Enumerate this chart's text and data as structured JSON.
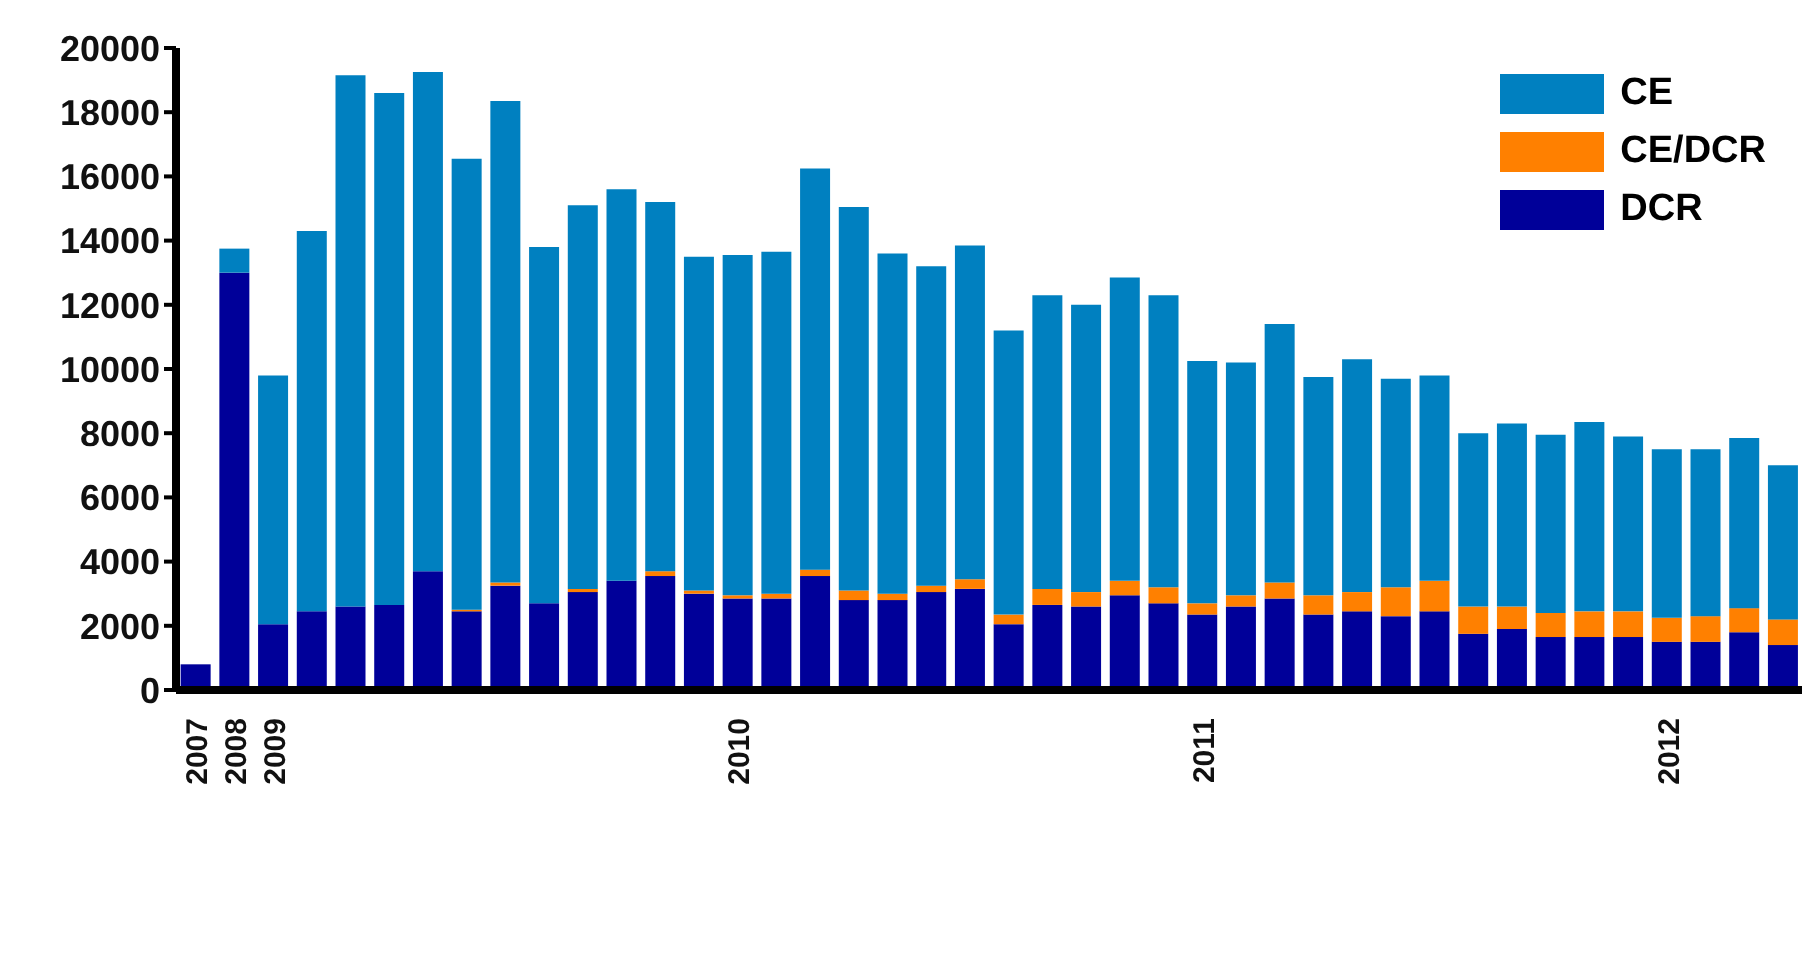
{
  "chart_data": {
    "type": "bar",
    "stacked": true,
    "categories": [
      "2007",
      "2008",
      "2009",
      null,
      null,
      null,
      null,
      null,
      null,
      null,
      null,
      null,
      null,
      null,
      "2010",
      null,
      null,
      null,
      null,
      null,
      null,
      null,
      null,
      null,
      null,
      null,
      "2011",
      null,
      null,
      null,
      null,
      null,
      null,
      null,
      null,
      null,
      null,
      null,
      "2012",
      null,
      null,
      null
    ],
    "series": [
      {
        "name": "DCR",
        "color": "#000099",
        "values": [
          800,
          13000,
          2050,
          2450,
          2600,
          2650,
          3700,
          2450,
          3250,
          2700,
          3050,
          3400,
          3550,
          3000,
          2850,
          2850,
          3550,
          2800,
          2800,
          3050,
          3150,
          2050,
          2650,
          2600,
          2950,
          2700,
          2350,
          2600,
          2850,
          2350,
          2450,
          2300,
          2450,
          1750,
          1900,
          1650,
          1650,
          1650,
          1500,
          1500,
          1800,
          1400
        ]
      },
      {
        "name": "CE/DCR",
        "color": "#ff8000",
        "values": [
          0,
          0,
          0,
          0,
          0,
          0,
          0,
          50,
          100,
          0,
          100,
          0,
          150,
          100,
          100,
          150,
          200,
          300,
          200,
          200,
          300,
          300,
          500,
          450,
          450,
          500,
          350,
          350,
          500,
          600,
          600,
          900,
          950,
          850,
          700,
          750,
          800,
          800,
          750,
          800,
          750,
          800
        ]
      },
      {
        "name": "CE",
        "color": "#0080c0",
        "values": [
          0,
          750,
          7750,
          11850,
          16550,
          15950,
          15550,
          14050,
          15000,
          11100,
          11950,
          12200,
          11500,
          10400,
          10600,
          10650,
          12500,
          11950,
          10600,
          9950,
          10400,
          8850,
          9150,
          8950,
          9450,
          9100,
          7550,
          7250,
          8050,
          6800,
          7250,
          6500,
          6400,
          5400,
          5700,
          5550,
          5900,
          5450,
          5250,
          5200,
          5300,
          4800
        ]
      }
    ],
    "ylim": [
      0,
      20000
    ],
    "yticks": [
      0,
      2000,
      4000,
      6000,
      8000,
      10000,
      12000,
      14000,
      16000,
      18000,
      20000
    ],
    "legend": "top right",
    "grid": false
  }
}
